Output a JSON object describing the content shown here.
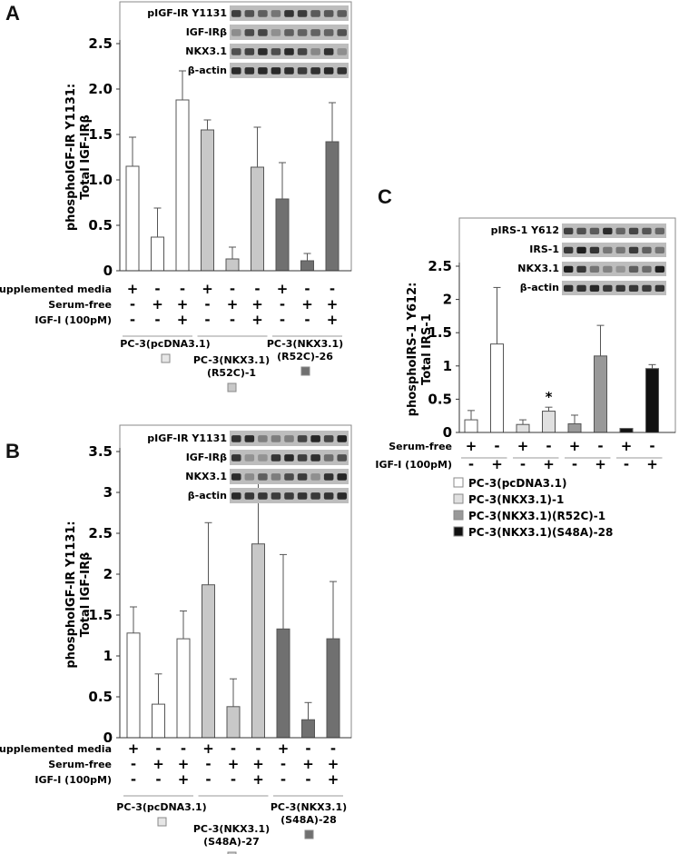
{
  "chart_data": [
    {
      "id": "A",
      "type": "bar",
      "panel_label": "A",
      "ylabel_line1": "phosphoIGF-IR Y1131:",
      "ylabel_line2": "Total IGF-IRβ",
      "ylim": [
        0,
        2.5
      ],
      "yticks": [
        "0",
        "0.5",
        "1.0",
        "1.5",
        "2.0",
        "2.5"
      ],
      "blot_labels": [
        "pIGF-IR Y1131",
        "IGF-IRβ",
        "NKX3.1",
        "β-actin"
      ],
      "row_labels": [
        "Supplemented media",
        "Serum-free",
        "IGF-I (100pM)"
      ],
      "conditions": [
        [
          "+",
          "-",
          "-"
        ],
        [
          "-",
          "+",
          "-"
        ],
        [
          "-",
          "+",
          "+"
        ],
        [
          "+",
          "-",
          "-"
        ],
        [
          "-",
          "+",
          "-"
        ],
        [
          "-",
          "+",
          "+"
        ],
        [
          "+",
          "-",
          "-"
        ],
        [
          "-",
          "+",
          "-"
        ],
        [
          "-",
          "+",
          "+"
        ]
      ],
      "groups": [
        "PC-3(pcDNA3.1)",
        "PC-3(NKX3.1) (R52C)-1",
        "PC-3(NKX3.1) (R52C)-26"
      ],
      "group_lines": [
        [
          "PC-3(pcDNA3.1)"
        ],
        [
          "PC-3(NKX3.1)",
          "(R52C)-1"
        ],
        [
          "PC-3(NKX3.1)",
          "(R52C)-26"
        ]
      ],
      "group_colors": [
        "#ffffff",
        "#c8c8c8",
        "#707070"
      ],
      "values": [
        1.15,
        0.37,
        1.88,
        1.55,
        0.13,
        1.14,
        0.79,
        0.11,
        1.42
      ],
      "errors": [
        0.32,
        0.32,
        0.32,
        0.11,
        0.13,
        0.44,
        0.4,
        0.08,
        0.43
      ]
    },
    {
      "id": "B",
      "type": "bar",
      "panel_label": "B",
      "ylabel_line1": "phosphoIGF-IR Y1131:",
      "ylabel_line2": "Total IGF-IRβ",
      "ylim": [
        0,
        3.5
      ],
      "yticks": [
        "0",
        "0.5",
        "1",
        "1.5",
        "2",
        "2.5",
        "3",
        "3.5"
      ],
      "blot_labels": [
        "pIGF-IR Y1131",
        "IGF-IRβ",
        "NKX3.1",
        "β-actin"
      ],
      "row_labels": [
        "Supplemented media",
        "Serum-free",
        "IGF-I (100pM)"
      ],
      "conditions": [
        [
          "+",
          "-",
          "-"
        ],
        [
          "-",
          "+",
          "-"
        ],
        [
          "-",
          "+",
          "+"
        ],
        [
          "+",
          "-",
          "-"
        ],
        [
          "-",
          "+",
          "-"
        ],
        [
          "-",
          "+",
          "+"
        ],
        [
          "+",
          "-",
          "-"
        ],
        [
          "-",
          "+",
          "-"
        ],
        [
          "-",
          "+",
          "+"
        ]
      ],
      "groups": [
        "PC-3(pcDNA3.1)",
        "PC-3(NKX3.1) (S48A)-27",
        "PC-3(NKX3.1) (S48A)-28"
      ],
      "group_lines": [
        [
          "PC-3(pcDNA3.1)"
        ],
        [
          "PC-3(NKX3.1)",
          "(S48A)-27"
        ],
        [
          "PC-3(NKX3.1)",
          "(S48A)-28"
        ]
      ],
      "group_colors": [
        "#ffffff",
        "#c8c8c8",
        "#707070"
      ],
      "values": [
        1.28,
        0.41,
        1.21,
        1.87,
        0.38,
        2.37,
        1.33,
        0.22,
        1.21
      ],
      "errors": [
        0.32,
        0.37,
        0.34,
        0.76,
        0.34,
        0.83,
        0.91,
        0.21,
        0.7
      ]
    },
    {
      "id": "C",
      "type": "bar",
      "panel_label": "C",
      "ylabel_line1": "phosphoIRS-1 Y612:",
      "ylabel_line2": "Total IRS-1",
      "ylim": [
        0,
        2.5
      ],
      "yticks": [
        "0",
        "0.5",
        "1",
        "1.5",
        "2",
        "2.5"
      ],
      "blot_labels": [
        "pIRS-1 Y612",
        "IRS-1",
        "NKX3.1",
        "β-actin"
      ],
      "row_labels": [
        "Serum-free",
        "IGF-I (100pM)"
      ],
      "conditions": [
        [
          "+",
          "-"
        ],
        [
          "-",
          "+"
        ],
        [
          "+",
          "-"
        ],
        [
          "-",
          "+"
        ],
        [
          "+",
          "-"
        ],
        [
          "-",
          "+"
        ],
        [
          "+",
          "-"
        ],
        [
          "-",
          "+"
        ]
      ],
      "legend": [
        "PC-3(pcDNA3.1)",
        "PC-3(NKX3.1)-1",
        "PC-3(NKX3.1)(R52C)-1",
        "PC-3(NKX3.1)(S48A)-28"
      ],
      "group_colors": [
        "#ffffff",
        "#e0e0e0",
        "#999999",
        "#111111"
      ],
      "values": [
        0.19,
        1.33,
        0.12,
        0.32,
        0.13,
        1.15,
        0.06,
        0.96
      ],
      "errors": [
        0.14,
        0.85,
        0.07,
        0.06,
        0.13,
        0.46,
        0.0,
        0.06
      ],
      "annotation": "*"
    }
  ]
}
